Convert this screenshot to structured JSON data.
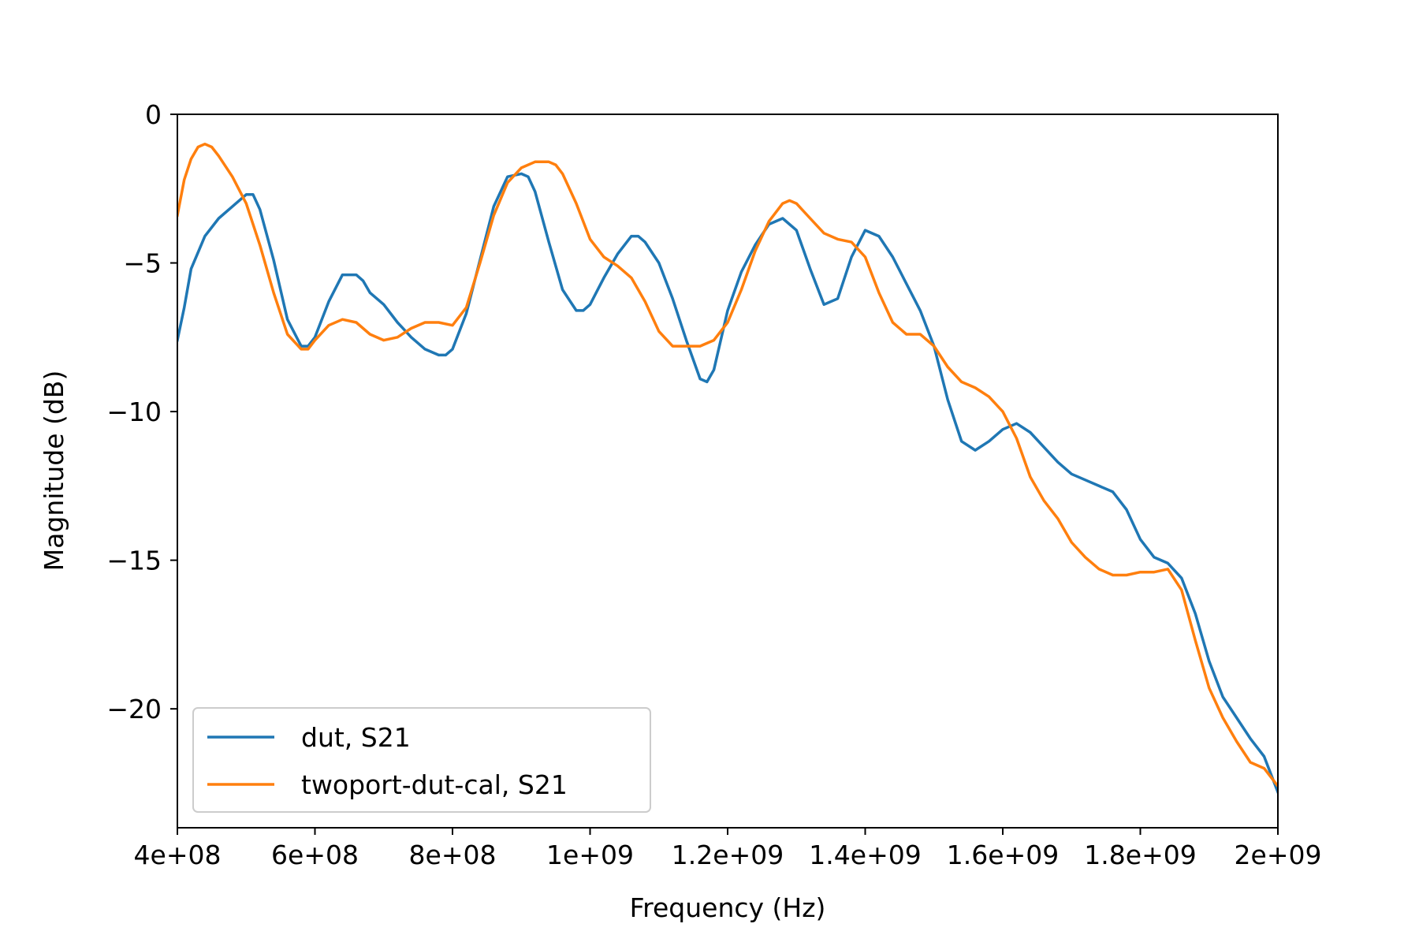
{
  "chart_data": {
    "type": "line",
    "title": "",
    "xlabel": "Frequency (Hz)",
    "ylabel": "Magnitude (dB)",
    "xlim": [
      400000000,
      2000000000
    ],
    "ylim": [
      -24,
      0
    ],
    "xticks": [
      400000000,
      600000000,
      800000000,
      1000000000,
      1200000000,
      1400000000,
      1600000000,
      1800000000,
      2000000000
    ],
    "xtick_labels": [
      "4e+08",
      "6e+08",
      "8e+08",
      "1e+09",
      "1.2e+09",
      "1.4e+09",
      "1.6e+09",
      "1.8e+09",
      "2e+09"
    ],
    "yticks": [
      0,
      -5,
      -10,
      -15,
      -20
    ],
    "ytick_labels": [
      "0",
      "−5",
      "−10",
      "−15",
      "−20"
    ],
    "grid": false,
    "legend_position": "lower-left",
    "series": [
      {
        "name": "dut, S21",
        "color": "#1f77b4",
        "x": [
          400000000,
          410000000,
          420000000,
          440000000,
          460000000,
          480000000,
          500000000,
          510000000,
          520000000,
          540000000,
          560000000,
          580000000,
          590000000,
          600000000,
          620000000,
          640000000,
          660000000,
          670000000,
          680000000,
          700000000,
          720000000,
          740000000,
          760000000,
          780000000,
          790000000,
          800000000,
          820000000,
          840000000,
          860000000,
          880000000,
          900000000,
          910000000,
          920000000,
          940000000,
          960000000,
          980000000,
          990000000,
          1000000000,
          1020000000,
          1040000000,
          1060000000,
          1070000000,
          1080000000,
          1100000000,
          1120000000,
          1140000000,
          1160000000,
          1170000000,
          1180000000,
          1200000000,
          1220000000,
          1240000000,
          1260000000,
          1280000000,
          1300000000,
          1320000000,
          1340000000,
          1360000000,
          1380000000,
          1400000000,
          1420000000,
          1440000000,
          1460000000,
          1480000000,
          1500000000,
          1520000000,
          1540000000,
          1560000000,
          1580000000,
          1600000000,
          1620000000,
          1640000000,
          1660000000,
          1680000000,
          1700000000,
          1720000000,
          1740000000,
          1760000000,
          1780000000,
          1800000000,
          1820000000,
          1840000000,
          1860000000,
          1880000000,
          1900000000,
          1920000000,
          1940000000,
          1960000000,
          1980000000,
          2000000000
        ],
        "values": [
          -7.6,
          -6.5,
          -5.2,
          -4.1,
          -3.5,
          -3.1,
          -2.7,
          -2.7,
          -3.2,
          -4.9,
          -6.9,
          -7.8,
          -7.8,
          -7.5,
          -6.3,
          -5.4,
          -5.4,
          -5.6,
          -6.0,
          -6.4,
          -7.0,
          -7.5,
          -7.9,
          -8.1,
          -8.1,
          -7.9,
          -6.7,
          -4.9,
          -3.1,
          -2.1,
          -2.0,
          -2.1,
          -2.6,
          -4.3,
          -5.9,
          -6.6,
          -6.6,
          -6.4,
          -5.5,
          -4.7,
          -4.1,
          -4.1,
          -4.3,
          -5.0,
          -6.2,
          -7.6,
          -8.9,
          -9.0,
          -8.6,
          -6.6,
          -5.3,
          -4.4,
          -3.7,
          -3.5,
          -3.9,
          -5.2,
          -6.4,
          -6.2,
          -4.8,
          -3.9,
          -4.1,
          -4.8,
          -5.7,
          -6.6,
          -7.8,
          -9.6,
          -11.0,
          -11.3,
          -11.0,
          -10.6,
          -10.4,
          -10.7,
          -11.2,
          -11.7,
          -12.1,
          -12.3,
          -12.5,
          -12.7,
          -13.3,
          -14.3,
          -14.9,
          -15.1,
          -15.6,
          -16.8,
          -18.4,
          -19.6,
          -20.3,
          -21.0,
          -21.6,
          -22.8
        ]
      },
      {
        "name": "twoport-dut-cal, S21",
        "color": "#ff7f0e",
        "x": [
          400000000,
          410000000,
          420000000,
          430000000,
          440000000,
          450000000,
          460000000,
          480000000,
          500000000,
          520000000,
          540000000,
          560000000,
          580000000,
          590000000,
          600000000,
          620000000,
          640000000,
          660000000,
          680000000,
          700000000,
          720000000,
          740000000,
          760000000,
          780000000,
          800000000,
          820000000,
          840000000,
          860000000,
          880000000,
          900000000,
          920000000,
          940000000,
          950000000,
          960000000,
          980000000,
          1000000000,
          1020000000,
          1040000000,
          1060000000,
          1080000000,
          1100000000,
          1120000000,
          1140000000,
          1160000000,
          1180000000,
          1200000000,
          1220000000,
          1240000000,
          1260000000,
          1280000000,
          1290000000,
          1300000000,
          1320000000,
          1340000000,
          1360000000,
          1380000000,
          1400000000,
          1420000000,
          1440000000,
          1460000000,
          1480000000,
          1500000000,
          1520000000,
          1540000000,
          1560000000,
          1580000000,
          1600000000,
          1620000000,
          1640000000,
          1660000000,
          1680000000,
          1700000000,
          1720000000,
          1740000000,
          1760000000,
          1780000000,
          1800000000,
          1820000000,
          1840000000,
          1860000000,
          1880000000,
          1900000000,
          1920000000,
          1940000000,
          1960000000,
          1980000000,
          2000000000
        ],
        "values": [
          -3.4,
          -2.2,
          -1.5,
          -1.1,
          -1.0,
          -1.1,
          -1.4,
          -2.1,
          -3.0,
          -4.4,
          -6.0,
          -7.4,
          -7.9,
          -7.9,
          -7.6,
          -7.1,
          -6.9,
          -7.0,
          -7.4,
          -7.6,
          -7.5,
          -7.2,
          -7.0,
          -7.0,
          -7.1,
          -6.5,
          -5.0,
          -3.4,
          -2.3,
          -1.8,
          -1.6,
          -1.6,
          -1.7,
          -2.0,
          -3.0,
          -4.2,
          -4.8,
          -5.1,
          -5.5,
          -6.3,
          -7.3,
          -7.8,
          -7.8,
          -7.8,
          -7.6,
          -7.0,
          -5.9,
          -4.6,
          -3.6,
          -3.0,
          -2.9,
          -3.0,
          -3.5,
          -4.0,
          -4.2,
          -4.3,
          -4.8,
          -6.0,
          -7.0,
          -7.4,
          -7.4,
          -7.8,
          -8.5,
          -9.0,
          -9.2,
          -9.5,
          -10.0,
          -10.9,
          -12.2,
          -13.0,
          -13.6,
          -14.4,
          -14.9,
          -15.3,
          -15.5,
          -15.5,
          -15.4,
          -15.4,
          -15.3,
          -16.0,
          -17.7,
          -19.3,
          -20.3,
          -21.1,
          -21.8,
          -22.0,
          -22.6
        ]
      }
    ]
  }
}
